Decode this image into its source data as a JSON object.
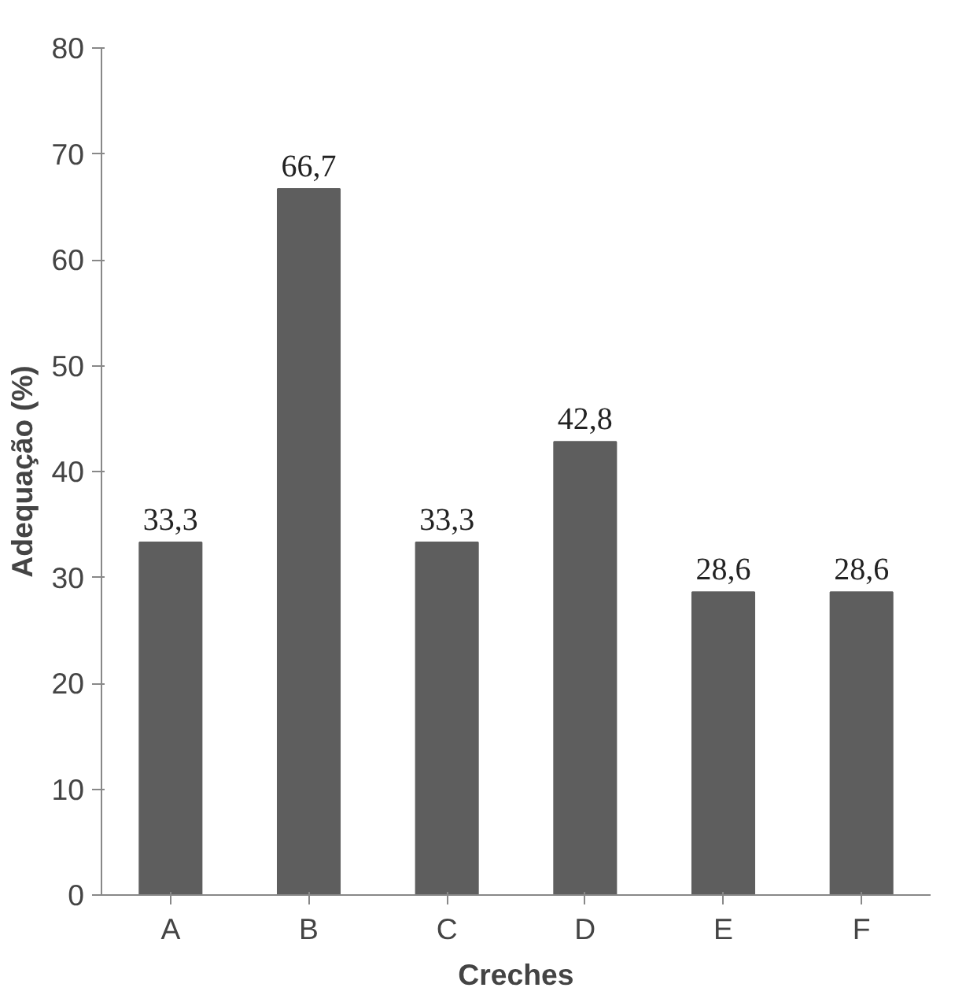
{
  "chart_data": {
    "type": "bar",
    "xlabel": "Creches",
    "ylabel": "Adequação (%)",
    "categories": [
      "A",
      "B",
      "C",
      "D",
      "E",
      "F"
    ],
    "values": [
      33.3,
      66.7,
      33.3,
      42.8,
      28.6,
      28.6
    ],
    "value_labels": [
      "33,3",
      "66,7",
      "33,3",
      "42,8",
      "28,6",
      "28,6"
    ],
    "color": "#5e5e5e",
    "ylim": [
      0,
      80
    ],
    "yticks": [
      0,
      10,
      20,
      30,
      40,
      50,
      60,
      70,
      80
    ],
    "grid": false
  }
}
